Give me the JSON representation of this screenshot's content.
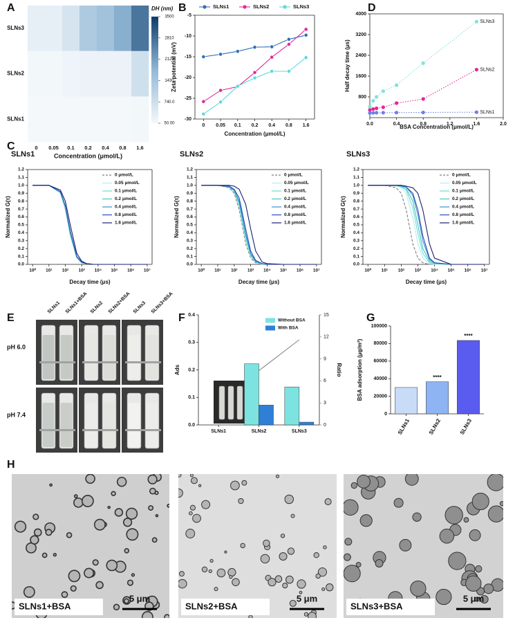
{
  "chart_data": [
    {
      "type": "heatmap",
      "panel": "A",
      "x_categories": [
        "0",
        "0.05",
        "0.1",
        "0.2",
        "0.4",
        "0.8",
        "1.6"
      ],
      "y_categories": [
        "SLNs3",
        "SLNs2",
        "SLNs1"
      ],
      "values": [
        [
          300,
          300,
          600,
          1300,
          1500,
          1900,
          2700
        ],
        [
          80,
          80,
          150,
          200,
          200,
          200,
          700
        ],
        [
          50,
          50,
          50,
          50,
          50,
          50,
          80
        ]
      ],
      "xlabel": "Concentration (μmol/L)",
      "colorbar_label": "DH (nm)",
      "clim": [
        50,
        3500
      ],
      "cticks": [
        {
          "value": 50,
          "label": "50.00"
        },
        {
          "value": 740,
          "label": "740.0"
        },
        1430,
        2120,
        2810,
        3500
      ],
      "colormap": [
        "#f4f8fb",
        "#93b8d6",
        "#0b3b6a"
      ]
    },
    {
      "type": "line",
      "panel": "B",
      "categories": [
        "0",
        "0.05",
        "0.1",
        "0.2",
        "0.4",
        "0.8",
        "1.6"
      ],
      "xlabel": "Concentration (μmol/L)",
      "ylabel": "Zeta potential (mV)",
      "ylim": [
        -30,
        -5
      ],
      "yticks": [
        -30,
        -25,
        -20,
        -15,
        -10,
        -5
      ],
      "markers": true,
      "legend": "top",
      "series": [
        {
          "name": "SLNs1",
          "color": "#2e6fba",
          "values": [
            -15,
            -14.4,
            -13.7,
            -12.7,
            -12.6,
            -10.8,
            -9.8
          ]
        },
        {
          "name": "SLNs2",
          "color": "#e0289a",
          "values": [
            -25.8,
            -23.1,
            -22.2,
            -18.8,
            -15.1,
            -12,
            -8.4
          ]
        },
        {
          "name": "SLNs3",
          "color": "#5ed9d9",
          "values": [
            -28.8,
            -25.9,
            -22.1,
            -20.1,
            -18.5,
            -18.5,
            -15.2
          ]
        }
      ]
    },
    {
      "type": "scatter",
      "panel": "D",
      "x": [
        0,
        0.05,
        0.1,
        0.2,
        0.4,
        0.8,
        1.6
      ],
      "xlabel": "BSA Concentration (μmol/L)",
      "ylabel": "Half decay time (μs)",
      "xlim": [
        0,
        2
      ],
      "xticks": [
        {
          "value": 0,
          "label": "0.0"
        },
        0.4,
        0.8,
        1.2,
        1.6,
        {
          "value": 2,
          "label": "2.0"
        }
      ],
      "ylim": [
        0,
        4000
      ],
      "yticks": [
        800,
        1600,
        2400,
        3200,
        4000
      ],
      "legend": "inline",
      "trend_lines": true,
      "series": [
        {
          "name": "SLNs1",
          "color": "#6f7fe6",
          "values": [
            180,
            185,
            190,
            190,
            195,
            200,
            210
          ]
        },
        {
          "name": "SLNs2",
          "color": "#e0289a",
          "values": [
            300,
            330,
            360,
            400,
            560,
            720,
            1850
          ]
        },
        {
          "name": "SLNs3",
          "color": "#7fe3d8",
          "values": [
            420,
            650,
            800,
            1020,
            1250,
            2100,
            3700
          ]
        }
      ]
    },
    {
      "type": "line",
      "panel": "C",
      "title": "SLNs1",
      "xscale": "log",
      "x": [
        1,
        10,
        50,
        100,
        200,
        500,
        1000,
        2000,
        5000,
        10000,
        100000,
        10000000
      ],
      "xlim": [
        0.5,
        20000000
      ],
      "xticks": [
        {
          "value": 1,
          "label": "10⁰"
        },
        {
          "value": 10,
          "label": "10¹"
        },
        {
          "value": 100,
          "label": "10²"
        },
        {
          "value": 1000,
          "label": "10³"
        },
        {
          "value": 10000,
          "label": "10⁴"
        },
        {
          "value": 100000,
          "label": "10⁵"
        },
        {
          "value": 1000000,
          "label": "10⁶"
        },
        {
          "value": 10000000,
          "label": "10⁷"
        }
      ],
      "ylim": [
        0,
        1.2
      ],
      "yticks": [
        {
          "value": 0,
          "label": "0.0"
        },
        0.1,
        0.2,
        0.3,
        0.4,
        0.5,
        0.6,
        0.7,
        0.8,
        0.9,
        {
          "value": 1,
          "label": "1.0"
        },
        1.1,
        1.2
      ],
      "xlabel": "Decay time (μs)",
      "ylabel": "Normalized G(τ)",
      "legend": "upper right",
      "series": [
        {
          "name": "0 μmol/L",
          "color": "#808080",
          "line_style": "dashed",
          "values": [
            1,
            1,
            0.9,
            0.69,
            0.36,
            0.08,
            0.02,
            0.01,
            0,
            0,
            0,
            0
          ]
        },
        {
          "name": "0.05 μmol/L",
          "color": "#b3eef0",
          "values": [
            1,
            1,
            0.9,
            0.69,
            0.36,
            0.08,
            0.02,
            0.01,
            0,
            0,
            0,
            0
          ]
        },
        {
          "name": "0.1 μmol/L",
          "color": "#6fdcd6",
          "values": [
            1,
            1,
            0.91,
            0.72,
            0.39,
            0.09,
            0.02,
            0.01,
            0,
            0,
            0,
            0
          ]
        },
        {
          "name": "0.2 μmol/L",
          "color": "#42c6c0",
          "values": [
            1,
            1,
            0.91,
            0.72,
            0.39,
            0.09,
            0.02,
            0.01,
            0,
            0,
            0,
            0
          ]
        },
        {
          "name": "0.4 μmol/L",
          "color": "#3a8fd0",
          "values": [
            1,
            1,
            0.92,
            0.74,
            0.42,
            0.1,
            0.03,
            0.01,
            0,
            0,
            0,
            0
          ]
        },
        {
          "name": "0.8 μmol/L",
          "color": "#2a4bb0",
          "values": [
            1,
            1,
            0.92,
            0.74,
            0.42,
            0.1,
            0.03,
            0.01,
            0,
            0,
            0,
            0
          ]
        },
        {
          "name": "1.6 μmol/L",
          "color": "#16206e",
          "values": [
            1,
            1,
            0.94,
            0.8,
            0.5,
            0.14,
            0.04,
            0.01,
            0,
            0,
            0,
            0
          ]
        }
      ]
    },
    {
      "type": "line",
      "title": "SLNs2",
      "xscale": "log",
      "x": [
        1,
        10,
        50,
        100,
        200,
        500,
        1000,
        2000,
        5000,
        10000,
        100000,
        10000000
      ],
      "xlim": [
        0.5,
        20000000
      ],
      "xticks": [
        {
          "value": 1,
          "label": "10⁰"
        },
        {
          "value": 10,
          "label": "10¹"
        },
        {
          "value": 100,
          "label": "10²"
        },
        {
          "value": 1000,
          "label": "10³"
        },
        {
          "value": 10000,
          "label": "10⁴"
        },
        {
          "value": 100000,
          "label": "10⁵"
        },
        {
          "value": 1000000,
          "label": "10⁶"
        },
        {
          "value": 10000000,
          "label": "10⁷"
        }
      ],
      "ylim": [
        0,
        1.2
      ],
      "yticks": [
        {
          "value": 0,
          "label": "0.0"
        },
        0.1,
        0.2,
        0.3,
        0.4,
        0.5,
        0.6,
        0.7,
        0.8,
        0.9,
        {
          "value": 1,
          "label": "1.0"
        },
        1.1,
        1.2
      ],
      "xlabel": "Decay time (μs)",
      "ylabel": "Normalized G(τ)",
      "legend": "upper right",
      "series": [
        {
          "name": "0 μmol/L",
          "color": "#808080",
          "line_style": "dashed",
          "values": [
            1,
            1,
            0.97,
            0.9,
            0.69,
            0.26,
            0.08,
            0.02,
            0,
            0,
            0,
            0
          ]
        },
        {
          "name": "0.05 μmol/L",
          "color": "#b3eef0",
          "values": [
            1,
            1,
            0.98,
            0.92,
            0.73,
            0.3,
            0.1,
            0.03,
            0,
            0,
            0,
            0
          ]
        },
        {
          "name": "0.1 μmol/L",
          "color": "#6fdcd6",
          "values": [
            1,
            1,
            0.98,
            0.92,
            0.75,
            0.33,
            0.11,
            0.03,
            0,
            0,
            0,
            0
          ]
        },
        {
          "name": "0.2 μmol/L",
          "color": "#42c6c0",
          "values": [
            1,
            1,
            0.98,
            0.94,
            0.78,
            0.37,
            0.13,
            0.03,
            0.01,
            0,
            0,
            0
          ]
        },
        {
          "name": "0.4 μmol/L",
          "color": "#3a8fd0",
          "values": [
            1,
            1,
            0.98,
            0.94,
            0.8,
            0.39,
            0.14,
            0.04,
            0.01,
            0,
            0,
            0
          ]
        },
        {
          "name": "0.8 μmol/L",
          "color": "#2a4bb0",
          "values": [
            1,
            1,
            0.99,
            0.95,
            0.84,
            0.45,
            0.17,
            0.05,
            0.01,
            0,
            0,
            0
          ]
        },
        {
          "name": "1.6 μmol/L",
          "color": "#16206e",
          "values": [
            1,
            1,
            1,
            0.99,
            0.95,
            0.76,
            0.45,
            0.17,
            0.03,
            0.01,
            0,
            0
          ]
        }
      ]
    },
    {
      "type": "line",
      "title": "SLNs3",
      "xscale": "log",
      "x": [
        1,
        10,
        50,
        100,
        200,
        500,
        1000,
        2000,
        5000,
        10000,
        100000,
        10000000
      ],
      "xlim": [
        0.5,
        20000000
      ],
      "xticks": [
        {
          "value": 1,
          "label": "10⁰"
        },
        {
          "value": 10,
          "label": "10¹"
        },
        {
          "value": 100,
          "label": "10²"
        },
        {
          "value": 1000,
          "label": "10³"
        },
        {
          "value": 10000,
          "label": "10⁴"
        },
        {
          "value": 100000,
          "label": "10⁵"
        },
        {
          "value": 1000000,
          "label": "10⁶"
        },
        {
          "value": 10000000,
          "label": "10⁷"
        }
      ],
      "ylim": [
        0,
        1.2
      ],
      "yticks": [
        {
          "value": 0,
          "label": "0.0"
        },
        0.1,
        0.2,
        0.3,
        0.4,
        0.5,
        0.6,
        0.7,
        0.8,
        0.9,
        {
          "value": 1,
          "label": "1.0"
        },
        1.1,
        1.2
      ],
      "xlabel": "Decay time (μs)",
      "ylabel": "Normalized G(τ)",
      "legend": "upper right",
      "series": [
        {
          "name": "0 μmol/L",
          "color": "#808080",
          "line_style": "dashed",
          "values": [
            1,
            1,
            0.97,
            0.9,
            0.69,
            0.26,
            0.08,
            0.02,
            0,
            0,
            0,
            0
          ]
        },
        {
          "name": "0.05 μmol/L",
          "color": "#b3eef0",
          "values": [
            1,
            1,
            0.99,
            0.97,
            0.9,
            0.59,
            0.26,
            0.08,
            0.01,
            0,
            0,
            0
          ]
        },
        {
          "name": "0.1 μmol/L",
          "color": "#6fdcd6",
          "values": [
            1,
            1,
            1,
            0.98,
            0.94,
            0.72,
            0.39,
            0.14,
            0.02,
            0.01,
            0,
            0
          ]
        },
        {
          "name": "0.2 μmol/L",
          "color": "#42c6c0",
          "values": [
            1,
            1,
            1,
            0.99,
            0.96,
            0.8,
            0.5,
            0.2,
            0.04,
            0.01,
            0,
            0
          ]
        },
        {
          "name": "0.4 μmol/L",
          "color": "#3a8fd0",
          "values": [
            1,
            1,
            1,
            0.99,
            0.98,
            0.87,
            0.63,
            0.3,
            0.06,
            0.02,
            0,
            0
          ]
        },
        {
          "name": "0.8 μmol/L",
          "color": "#2a4bb0",
          "values": [
            1,
            1,
            1,
            1,
            0.98,
            0.9,
            0.69,
            0.36,
            0.08,
            0.02,
            0,
            0
          ]
        },
        {
          "name": "1.6 μmol/L",
          "color": "#16206e",
          "values": [
            1,
            1,
            1,
            1,
            0.99,
            0.97,
            0.9,
            0.69,
            0.26,
            0.08,
            0,
            0
          ]
        }
      ]
    },
    {
      "type": "bar",
      "panel": "F",
      "categories": [
        "SLNs1",
        "SLNs2",
        "SLNs3"
      ],
      "ylabel": "Ads",
      "y2label": "Ratio",
      "ylim": [
        0,
        0.4
      ],
      "yticks": [
        {
          "value": 0,
          "label": "0.0"
        },
        0.1,
        0.2,
        0.3,
        0.4
      ],
      "y2lim": [
        0,
        15
      ],
      "y2ticks": [
        0,
        3,
        6,
        9,
        12,
        15
      ],
      "legend": "upper right",
      "series": [
        {
          "name": "Without BSA",
          "color": "#7de3e0",
          "values": [
            null,
            0.222,
            0.138
          ]
        },
        {
          "name": "With BSA",
          "color": "#2f7fd6",
          "values": [
            null,
            0.072,
            0.01
          ]
        },
        {
          "color": "#888888",
          "axis": "y2",
          "values": [
            null,
            7.4,
            11.6
          ]
        }
      ]
    },
    {
      "type": "bar",
      "panel": "G",
      "categories": [
        "SLNs1",
        "SLNs2",
        "SLNs3"
      ],
      "ylabel": "BSA adsorption (μg/m²)",
      "ylim": [
        0,
        100000
      ],
      "yticks": [
        0,
        20000,
        40000,
        60000,
        80000,
        100000
      ],
      "values": [
        30000,
        36500,
        83500
      ],
      "colors": [
        "#c8dcf8",
        "#8fb4f3",
        "#5a5cf0"
      ],
      "annotations": [
        null,
        "****",
        "****"
      ]
    }
  ],
  "photo_E": {
    "panel": "E",
    "samples": [
      "SLNs1",
      "SLNs1+BSA",
      "SLNs2",
      "SLNs2+BSA",
      "SLNs3",
      "SLNs3+BSA"
    ],
    "conditions": [
      "pH 6.0",
      "pH 7.4"
    ]
  },
  "micrographs_H": {
    "panel": "H",
    "images": [
      {
        "label": "SLNs1+BSA",
        "scale_bar": "5 μm"
      },
      {
        "label": "SLNs2+BSA",
        "scale_bar": "5 μm"
      },
      {
        "label": "SLNs3+BSA",
        "scale_bar": "5 μm"
      }
    ]
  }
}
